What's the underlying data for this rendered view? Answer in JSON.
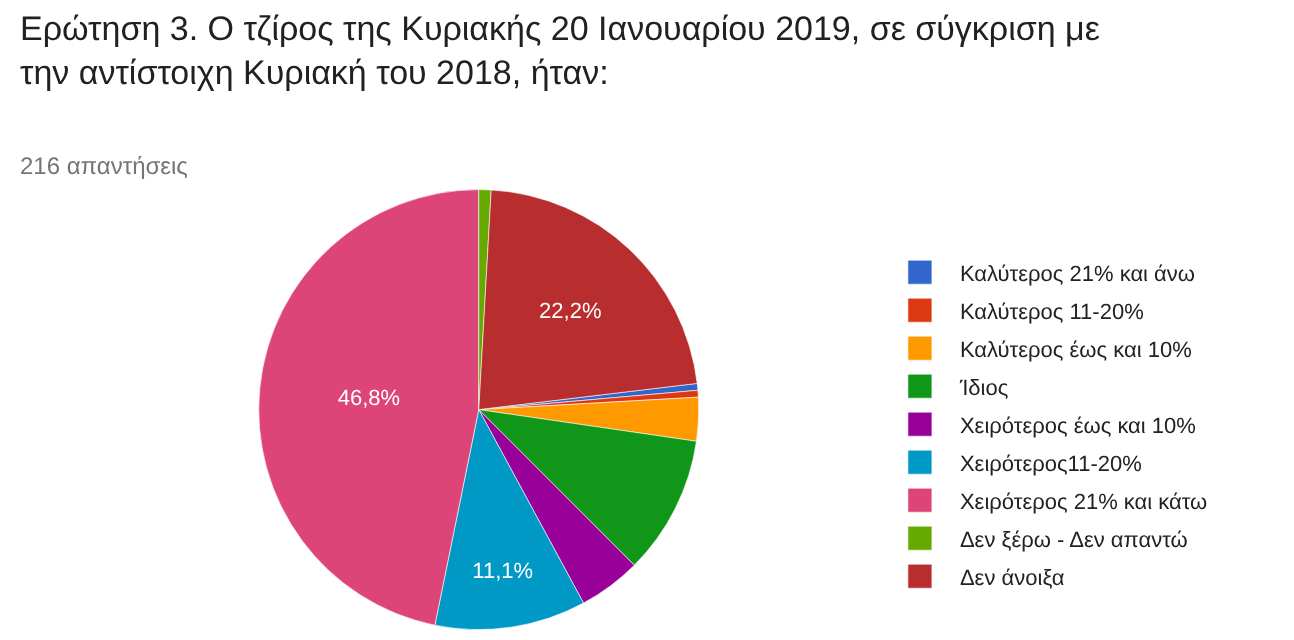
{
  "chart_data": {
    "type": "pie",
    "title": "Ερώτηση 3. Ο τζίρος της Κυριακής 20 Ιανουαρίου 2019, σε σύγκριση με την αντίστοιχη Κυριακή του 2018, ήταν:",
    "subtitle": "216 απαντήσεις",
    "categories": [
      "Καλύτερος 21% και άνω",
      "Καλύτερος 11-20%",
      "Καλύτερος έως και 10%",
      "Ίδιος",
      "Χειρότερος έως και 10%",
      "Χειρότερος11-20%",
      "Χειρότερος 21% και κάτω",
      "Δεν ξέρω - Δεν απαντώ",
      "Δεν άνοιξα"
    ],
    "values": [
      0.5,
      0.5,
      3.2,
      10.2,
      4.6,
      11.1,
      46.8,
      0.9,
      22.2
    ],
    "colors": [
      "#3366cc",
      "#dc3912",
      "#ff9900",
      "#109618",
      "#990099",
      "#0099c6",
      "#dd4477",
      "#66aa00",
      "#b82e2e"
    ],
    "value_labels": [
      null,
      null,
      null,
      null,
      null,
      "11,1%",
      "46,8%",
      null,
      "22,2%"
    ],
    "legend": "right"
  }
}
